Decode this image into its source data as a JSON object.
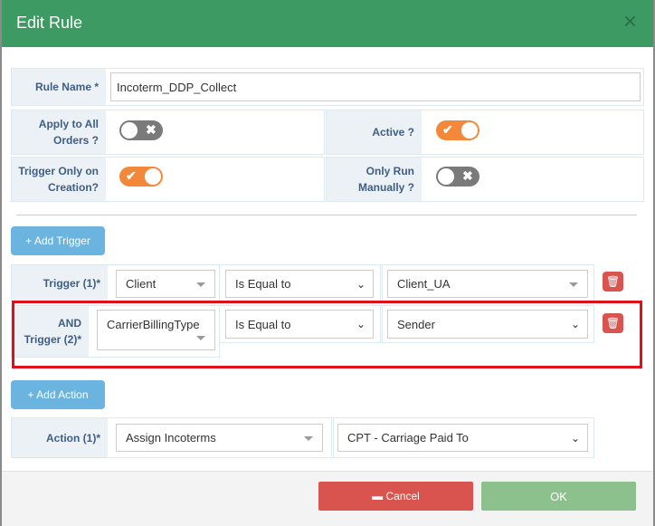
{
  "dialog": {
    "title": "Edit Rule",
    "close": "×"
  },
  "rule_name": {
    "label": "Rule Name *",
    "value": "Incoterm_DDP_Collect"
  },
  "toggles": [
    {
      "label1": "Apply to All",
      "label2": "Orders ?",
      "on": false
    },
    {
      "label1": "Active ?",
      "label2": "",
      "on": true
    },
    {
      "label1": "Trigger Only on",
      "label2": "Creation?",
      "on": true
    },
    {
      "label1": "Only Run",
      "label2": "Manually ?",
      "on": false
    }
  ],
  "add_trigger": "+ Add Trigger",
  "triggers": [
    {
      "label": "Trigger (1)*",
      "field": "Client",
      "operator": "Is Equal to",
      "value": "Client_UA"
    },
    {
      "label1": "AND",
      "label2": "Trigger (2)*",
      "field": "CarrierBillingType",
      "operator": "Is Equal to",
      "value": "Sender"
    }
  ],
  "highlight_color": "#e0101a",
  "add_action": "+ Add Action",
  "action": {
    "label": "Action (1)*",
    "type": "Assign Incoterms",
    "value": "CPT - Carriage Paid To"
  },
  "footer": {
    "cancel": "▬ Cancel",
    "ok": "OK"
  }
}
